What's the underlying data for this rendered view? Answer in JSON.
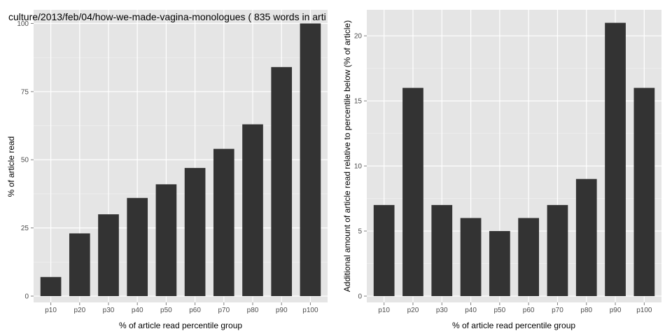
{
  "chart_data": [
    {
      "type": "bar",
      "title": "culture/2013/feb/04/how-we-made-vagina-monologues ( 835 words in arti",
      "xlabel": "% of article read percentile group",
      "ylabel": "% of article read",
      "categories": [
        "p10",
        "p20",
        "p30",
        "p40",
        "p50",
        "p60",
        "p70",
        "p80",
        "p90",
        "p100"
      ],
      "values": [
        7,
        23,
        30,
        36,
        41,
        47,
        54,
        63,
        84,
        100
      ],
      "ylim": [
        0,
        105
      ],
      "yticks": [
        0,
        25,
        50,
        75,
        100
      ],
      "grid": true,
      "bar_color": "#333333",
      "panel_background": "#e5e5e5"
    },
    {
      "type": "bar",
      "title": "",
      "xlabel": "% of article read percentile group",
      "ylabel": "Additional amount of article read relative to percentile below (% of article)",
      "categories": [
        "p10",
        "p20",
        "p30",
        "p40",
        "p50",
        "p60",
        "p70",
        "p80",
        "p90",
        "p100"
      ],
      "values": [
        7,
        16,
        7,
        6,
        5,
        6,
        7,
        9,
        21,
        16
      ],
      "ylim": [
        0,
        22
      ],
      "yticks": [
        0,
        5,
        10,
        15,
        20
      ],
      "grid": true,
      "bar_color": "#333333",
      "panel_background": "#e5e5e5"
    }
  ]
}
